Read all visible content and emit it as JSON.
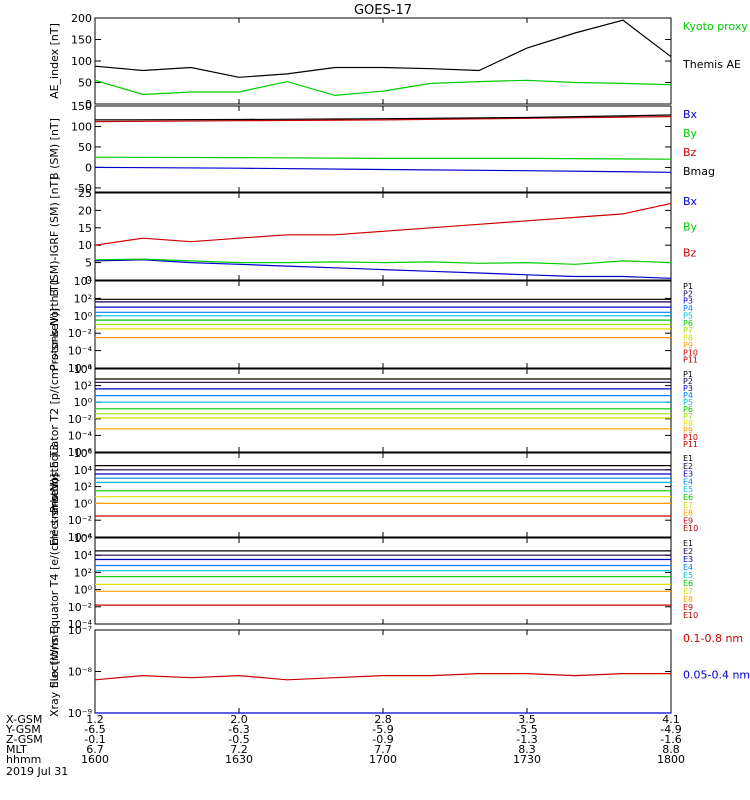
{
  "title": "GOES-17",
  "chart_data": [
    {
      "type": "line",
      "ylabel": "AE_index [nT]",
      "ylim": [
        0,
        200
      ],
      "yticks": [
        "0",
        "50",
        "100",
        "150",
        "200"
      ],
      "log": false,
      "x": [
        1600,
        1610,
        1620,
        1630,
        1640,
        1650,
        1700,
        1710,
        1720,
        1730,
        1740,
        1750,
        1800
      ],
      "series": [
        {
          "name": "Kyoto proxy AE",
          "color": "#00cc00",
          "values": [
            55,
            22,
            28,
            28,
            52,
            20,
            30,
            48,
            52,
            55,
            50,
            48,
            45
          ]
        },
        {
          "name": "Themis AE",
          "color": "#000000",
          "values": [
            88,
            78,
            85,
            62,
            70,
            85,
            85,
            82,
            78,
            130,
            165,
            195,
            110
          ]
        }
      ]
    },
    {
      "type": "line",
      "ylabel": "B (SM) [nT]",
      "ylim": [
        -60,
        150
      ],
      "yticks": [
        "-50",
        "0",
        "50",
        "100",
        "150"
      ],
      "log": false,
      "x": [
        1600,
        1630,
        1700,
        1730,
        1800
      ],
      "series": [
        {
          "name": "Bx",
          "color": "#0000cc",
          "values": [
            0,
            -2,
            -5,
            -8,
            -12
          ]
        },
        {
          "name": "By",
          "color": "#00cc00",
          "values": [
            25,
            24,
            22,
            22,
            20
          ]
        },
        {
          "name": "Bz",
          "color": "#cc0000",
          "values": [
            112,
            114,
            116,
            120,
            124
          ]
        },
        {
          "name": "Bmag",
          "color": "#000000",
          "values": [
            116,
            117,
            119,
            122,
            128
          ]
        }
      ]
    },
    {
      "type": "line",
      "ylabel": "B (SM)-IGRF (SM) [nT]",
      "ylim": [
        0,
        25
      ],
      "yticks": [
        "0",
        "5",
        "10",
        "15",
        "20",
        "25"
      ],
      "log": false,
      "x": [
        1600,
        1610,
        1620,
        1630,
        1640,
        1650,
        1700,
        1710,
        1720,
        1730,
        1740,
        1750,
        1800
      ],
      "series": [
        {
          "name": "Bx",
          "color": "#0000cc",
          "values": [
            5.5,
            5.8,
            5.0,
            4.5,
            4.0,
            3.5,
            3.0,
            2.5,
            2.0,
            1.5,
            1.0,
            1.0,
            0.5
          ]
        },
        {
          "name": "By",
          "color": "#00cc00",
          "values": [
            5.8,
            6.0,
            5.5,
            5.0,
            5.0,
            5.2,
            5.0,
            5.2,
            4.8,
            5.0,
            4.5,
            5.5,
            5.0
          ]
        },
        {
          "name": "Bz",
          "color": "#cc0000",
          "values": [
            10,
            12,
            11,
            12,
            13,
            13,
            14,
            15,
            16,
            17,
            18,
            19,
            22
          ]
        }
      ]
    },
    {
      "type": "line",
      "ylabel": "Protons North T1",
      "log": true,
      "ylim": [
        -6,
        4
      ],
      "yticks": [
        "10⁴",
        "10²",
        "10⁰",
        "10⁻²",
        "10⁻⁴",
        "10⁻⁶"
      ],
      "x": [
        1600,
        1800
      ],
      "series": [
        {
          "name": "P1",
          "color": "#000000",
          "values": [
            1.9,
            1.9
          ]
        },
        {
          "name": "P2",
          "color": "#1a0050",
          "values": [
            1.6,
            1.6
          ]
        },
        {
          "name": "P3",
          "color": "#0000cc",
          "values": [
            1.0,
            1.0
          ]
        },
        {
          "name": "P4",
          "color": "#0080ff",
          "values": [
            0.4,
            0.4
          ]
        },
        {
          "name": "P5",
          "color": "#00c0e0",
          "values": [
            0.0,
            0.0
          ]
        },
        {
          "name": "P6",
          "color": "#00cc00",
          "values": [
            -0.5,
            -0.5
          ]
        },
        {
          "name": "P7",
          "color": "#a0e000",
          "values": [
            -1.0,
            -1.0
          ]
        },
        {
          "name": "P8",
          "color": "#e0e000",
          "values": [
            -1.5,
            -1.5
          ]
        },
        {
          "name": "P9",
          "color": "#ffa000",
          "values": [
            -2.5,
            -2.5
          ]
        },
        {
          "name": "P10",
          "color": "#cc0000",
          "values": [
            null,
            null
          ]
        },
        {
          "name": "P11",
          "color": "#aa0000",
          "values": [
            null,
            null
          ]
        }
      ]
    },
    {
      "type": "line",
      "ylabel": "Protons Equator T2 [p/(cm²-s-sr-keV)]",
      "log": true,
      "ylim": [
        -6,
        4
      ],
      "yticks": [
        "10⁴",
        "10²",
        "10⁰",
        "10⁻²",
        "10⁻⁴",
        "10⁻⁶"
      ],
      "x": [
        1600,
        1800
      ],
      "series": [
        {
          "name": "P1",
          "color": "#000000",
          "values": [
            2.8,
            2.8
          ]
        },
        {
          "name": "P2",
          "color": "#1a0050",
          "values": [
            2.4,
            2.4
          ]
        },
        {
          "name": "P3",
          "color": "#0000cc",
          "values": [
            1.6,
            1.6
          ]
        },
        {
          "name": "P4",
          "color": "#0080ff",
          "values": [
            0.8,
            0.8
          ]
        },
        {
          "name": "P5",
          "color": "#00c0e0",
          "values": [
            0.0,
            0.0
          ]
        },
        {
          "name": "P6",
          "color": "#00cc00",
          "values": [
            -0.8,
            -0.8
          ]
        },
        {
          "name": "P7",
          "color": "#a0e000",
          "values": [
            -1.4,
            -1.4
          ]
        },
        {
          "name": "P8",
          "color": "#e0e000",
          "values": [
            -1.9,
            -1.9
          ]
        },
        {
          "name": "P9",
          "color": "#ffa000",
          "values": [
            -3.2,
            -3.2
          ]
        },
        {
          "name": "P10",
          "color": "#cc0000",
          "values": [
            null,
            null
          ]
        },
        {
          "name": "P11",
          "color": "#aa0000",
          "values": [
            null,
            null
          ]
        }
      ]
    },
    {
      "type": "line",
      "ylabel": "Electrons North T3",
      "log": true,
      "ylim": [
        -4,
        6
      ],
      "yticks": [
        "10⁶",
        "10⁴",
        "10²",
        "10⁰",
        "10⁻²",
        "10⁻⁴"
      ],
      "x": [
        1600,
        1800
      ],
      "series": [
        {
          "name": "E1",
          "color": "#000000",
          "values": [
            4.5,
            4.5
          ]
        },
        {
          "name": "E2",
          "color": "#1a0050",
          "values": [
            4.0,
            4.0
          ]
        },
        {
          "name": "E3",
          "color": "#0000cc",
          "values": [
            3.5,
            3.5
          ]
        },
        {
          "name": "E4",
          "color": "#0080ff",
          "values": [
            3.0,
            3.0
          ]
        },
        {
          "name": "E5",
          "color": "#00c0e0",
          "values": [
            2.5,
            2.5
          ]
        },
        {
          "name": "E6",
          "color": "#00cc00",
          "values": [
            1.5,
            1.5
          ]
        },
        {
          "name": "E7",
          "color": "#e0e000",
          "values": [
            0.8,
            0.8
          ]
        },
        {
          "name": "E8",
          "color": "#ffa000",
          "values": [
            0.0,
            0.0
          ]
        },
        {
          "name": "E9",
          "color": "#cc0000",
          "values": [
            -1.5,
            -1.5
          ]
        },
        {
          "name": "E10",
          "color": "#aa0000",
          "values": [
            null,
            null
          ]
        }
      ]
    },
    {
      "type": "line",
      "ylabel": "Electrons Equator T4 [e/(cm²-s-sr-keV)]",
      "log": true,
      "ylim": [
        -4,
        6
      ],
      "yticks": [
        "10⁶",
        "10⁴",
        "10²",
        "10⁰",
        "10⁻²",
        "10⁻⁴"
      ],
      "x": [
        1600,
        1800
      ],
      "series": [
        {
          "name": "E1",
          "color": "#000000",
          "values": [
            4.5,
            4.5
          ]
        },
        {
          "name": "E2",
          "color": "#1a0050",
          "values": [
            4.0,
            4.0
          ]
        },
        {
          "name": "E3",
          "color": "#0000cc",
          "values": [
            3.5,
            3.5
          ]
        },
        {
          "name": "E4",
          "color": "#0080ff",
          "values": [
            2.8,
            2.8
          ]
        },
        {
          "name": "E5",
          "color": "#00c0e0",
          "values": [
            2.2,
            2.2
          ]
        },
        {
          "name": "E6",
          "color": "#00cc00",
          "values": [
            1.5,
            1.5
          ]
        },
        {
          "name": "E7",
          "color": "#e0e000",
          "values": [
            0.6,
            0.6
          ]
        },
        {
          "name": "E8",
          "color": "#ffa000",
          "values": [
            -0.2,
            -0.2
          ]
        },
        {
          "name": "E9",
          "color": "#cc0000",
          "values": [
            -1.8,
            -1.8
          ]
        },
        {
          "name": "E10",
          "color": "#aa0000",
          "values": [
            null,
            null
          ]
        }
      ]
    },
    {
      "type": "line",
      "ylabel": "Xray flux [W/m²]",
      "log": true,
      "ylim": [
        -9,
        -7
      ],
      "yticks": [
        "10⁻⁷",
        "10⁻⁸",
        "10⁻⁹"
      ],
      "x": [
        1600,
        1610,
        1620,
        1630,
        1640,
        1650,
        1700,
        1710,
        1720,
        1730,
        1740,
        1750,
        1800
      ],
      "series": [
        {
          "name": "0.1-0.8 nm",
          "color": "#cc0000",
          "values": [
            -8.2,
            -8.1,
            -8.15,
            -8.1,
            -8.2,
            -8.15,
            -8.1,
            -8.1,
            -8.05,
            -8.05,
            -8.1,
            -8.05,
            -8.05
          ]
        },
        {
          "name": "0.05-0.4 nm",
          "color": "#0000cc",
          "values": [
            -9.05,
            -9.0,
            -9.05,
            -9.0,
            -9.05,
            -9.0,
            -9.05,
            -9.05,
            -9.05,
            -9.05,
            -9.05,
            -9.05,
            -9.05
          ]
        }
      ]
    }
  ],
  "xaxis": {
    "min": 1600,
    "max": 1800,
    "tick_values": [
      1600,
      1630,
      1700,
      1730,
      1800
    ],
    "rows": [
      {
        "label": "X-GSM",
        "values": [
          "1.2",
          "2.0",
          "2.8",
          "3.5",
          "4.1"
        ]
      },
      {
        "label": "Y-GSM",
        "values": [
          "-6.5",
          "-6.3",
          "-5.9",
          "-5.5",
          "-4.9"
        ]
      },
      {
        "label": "Z-GSM",
        "values": [
          "-0.1",
          "-0.5",
          "-0.9",
          "-1.3",
          "-1.6"
        ]
      },
      {
        "label": "MLT",
        "values": [
          "6.7",
          "7.2",
          "7.7",
          "8.3",
          "8.8"
        ]
      },
      {
        "label": "hhmm",
        "values": [
          "1600",
          "1630",
          "1700",
          "1730",
          "1800"
        ]
      }
    ],
    "date": "2019 Jul 31"
  }
}
